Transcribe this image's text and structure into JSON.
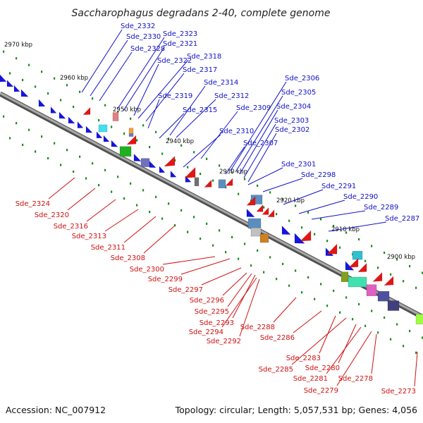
{
  "title": "Saccharophagus degradans 2-40, complete genome",
  "accession": "Accession: NC_007912",
  "topology": "Topology: circular; Length: 5,057,531 bp; Genes: 4,056",
  "colors": {
    "forward": "#1414e6",
    "reverse": "#e61414",
    "backbone": "#8c8c8c",
    "tick": "#1e8c1e",
    "label_forward": "#1010c8",
    "label_reverse": "#d01010"
  },
  "kbp_markers": [
    "2970 kbp",
    "2960 kbp",
    "2950 kbp",
    "2940 kbp",
    "2930 kbp",
    "2920 kbp",
    "2910 kbp",
    "2900 kbp"
  ],
  "forward_labels": [
    "Sde_2332",
    "Sde_2330",
    "Sde_2328",
    "Sde_2323",
    "Sde_2321",
    "Sde_2322",
    "Sde_2318",
    "Sde_2317",
    "Sde_2314",
    "Sde_2319",
    "Sde_2312",
    "Sde_2315",
    "Sde_2309",
    "Sde_2306",
    "Sde_2305",
    "Sde_2304",
    "Sde_2303",
    "Sde_2302",
    "Sde_2310",
    "Sde_2307",
    "Sde_2301",
    "Sde_2298",
    "Sde_2291",
    "Sde_2290",
    "Sde_2289",
    "Sde_2287"
  ],
  "reverse_labels": [
    "Sde_2324",
    "Sde_2320",
    "Sde_2316",
    "Sde_2313",
    "Sde_2311",
    "Sde_2308",
    "Sde_2300",
    "Sde_2299",
    "Sde_2297",
    "Sde_2296",
    "Sde_2295",
    "Sde_2293",
    "Sde_2294",
    "Sde_2292",
    "Sde_2288",
    "Sde_2286",
    "Sde_2283",
    "Sde_2285",
    "Sde_2280",
    "Sde_2281",
    "Sde_2279",
    "Sde_2278",
    "Sde_2273"
  ]
}
